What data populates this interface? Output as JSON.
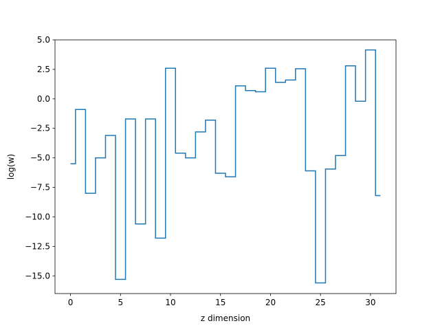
{
  "chart_data": {
    "type": "line",
    "drawstyle": "steps-mid",
    "title": "",
    "xlabel": "z dimension",
    "ylabel": "log(w)",
    "xlim": [
      -1.55,
      32.55
    ],
    "ylim": [
      -16.5,
      5.0
    ],
    "xticks": [
      0,
      5,
      10,
      15,
      20,
      25,
      30
    ],
    "xtick_labels": [
      "0",
      "5",
      "10",
      "15",
      "20",
      "25",
      "30"
    ],
    "yticks": [
      -15.0,
      -12.5,
      -10.0,
      -7.5,
      -5.0,
      -2.5,
      0.0,
      2.5,
      5.0
    ],
    "ytick_labels": [
      "−15.0",
      "−12.5",
      "−10.0",
      "−7.5",
      "−5.0",
      "−2.5",
      "0.0",
      "2.5",
      "5.0"
    ],
    "grid": false,
    "color": "#1f77b4",
    "series": [
      {
        "x": [
          0,
          1,
          2,
          3,
          4,
          5,
          6,
          7,
          8,
          9,
          10,
          11,
          12,
          13,
          14,
          15,
          16,
          17,
          18,
          19,
          20,
          21,
          22,
          23,
          24,
          25,
          26,
          27,
          28,
          29,
          30,
          31
        ],
        "values": [
          -5.5,
          -0.9,
          -8.0,
          -5.0,
          -3.1,
          -15.3,
          -1.7,
          -10.6,
          -1.7,
          -11.8,
          2.6,
          -4.6,
          -5.0,
          -2.8,
          -1.8,
          -6.3,
          -6.6,
          1.1,
          0.7,
          0.6,
          2.6,
          1.4,
          1.6,
          2.55,
          -6.1,
          -15.6,
          -5.95,
          -4.8,
          2.8,
          -0.2,
          4.15,
          -8.2
        ]
      }
    ]
  }
}
